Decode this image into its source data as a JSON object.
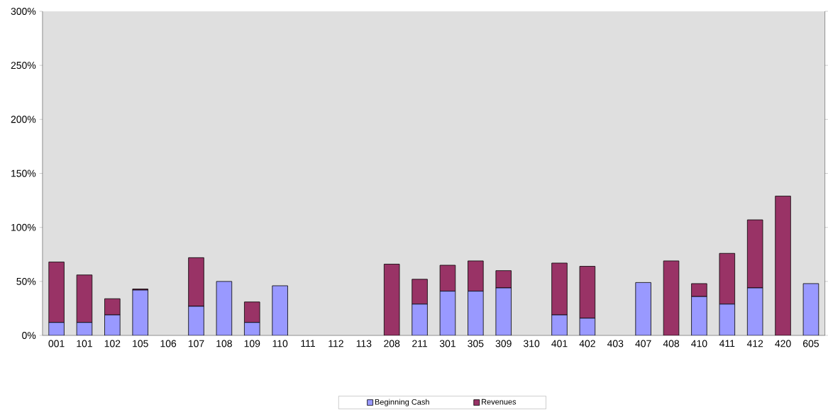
{
  "chart_data": {
    "type": "bar",
    "stacked": true,
    "categories": [
      "001",
      "101",
      "102",
      "105",
      "106",
      "107",
      "108",
      "109",
      "110",
      "111",
      "112",
      "113",
      "208",
      "211",
      "301",
      "305",
      "309",
      "310",
      "401",
      "402",
      "403",
      "407",
      "408",
      "410",
      "411",
      "412",
      "420",
      "605"
    ],
    "series": [
      {
        "name": "Beginning Cash",
        "color": "#9999ff",
        "values": [
          12,
          12,
          19,
          42,
          0,
          27,
          50,
          12,
          46,
          0,
          0,
          0,
          0,
          29,
          41,
          41,
          44,
          0,
          19,
          16,
          0,
          49,
          0,
          36,
          29,
          44,
          0,
          48
        ]
      },
      {
        "name": "Revenues",
        "color": "#993366",
        "values": [
          56,
          44,
          15,
          1,
          0,
          45,
          0,
          19,
          0,
          0,
          0,
          0,
          66,
          23,
          24,
          28,
          16,
          0,
          48,
          48,
          0,
          0,
          69,
          12,
          47,
          63,
          129,
          0
        ]
      }
    ],
    "ylim": [
      0,
      300
    ],
    "yticks": [
      {
        "value": 0,
        "label": "0%"
      },
      {
        "value": 50,
        "label": "50%"
      },
      {
        "value": 100,
        "label": "100%"
      },
      {
        "value": 150,
        "label": "150%"
      },
      {
        "value": 200,
        "label": "200%"
      },
      {
        "value": 250,
        "label": "250%"
      },
      {
        "value": 300,
        "label": "300%"
      }
    ],
    "legend": "bottom"
  }
}
